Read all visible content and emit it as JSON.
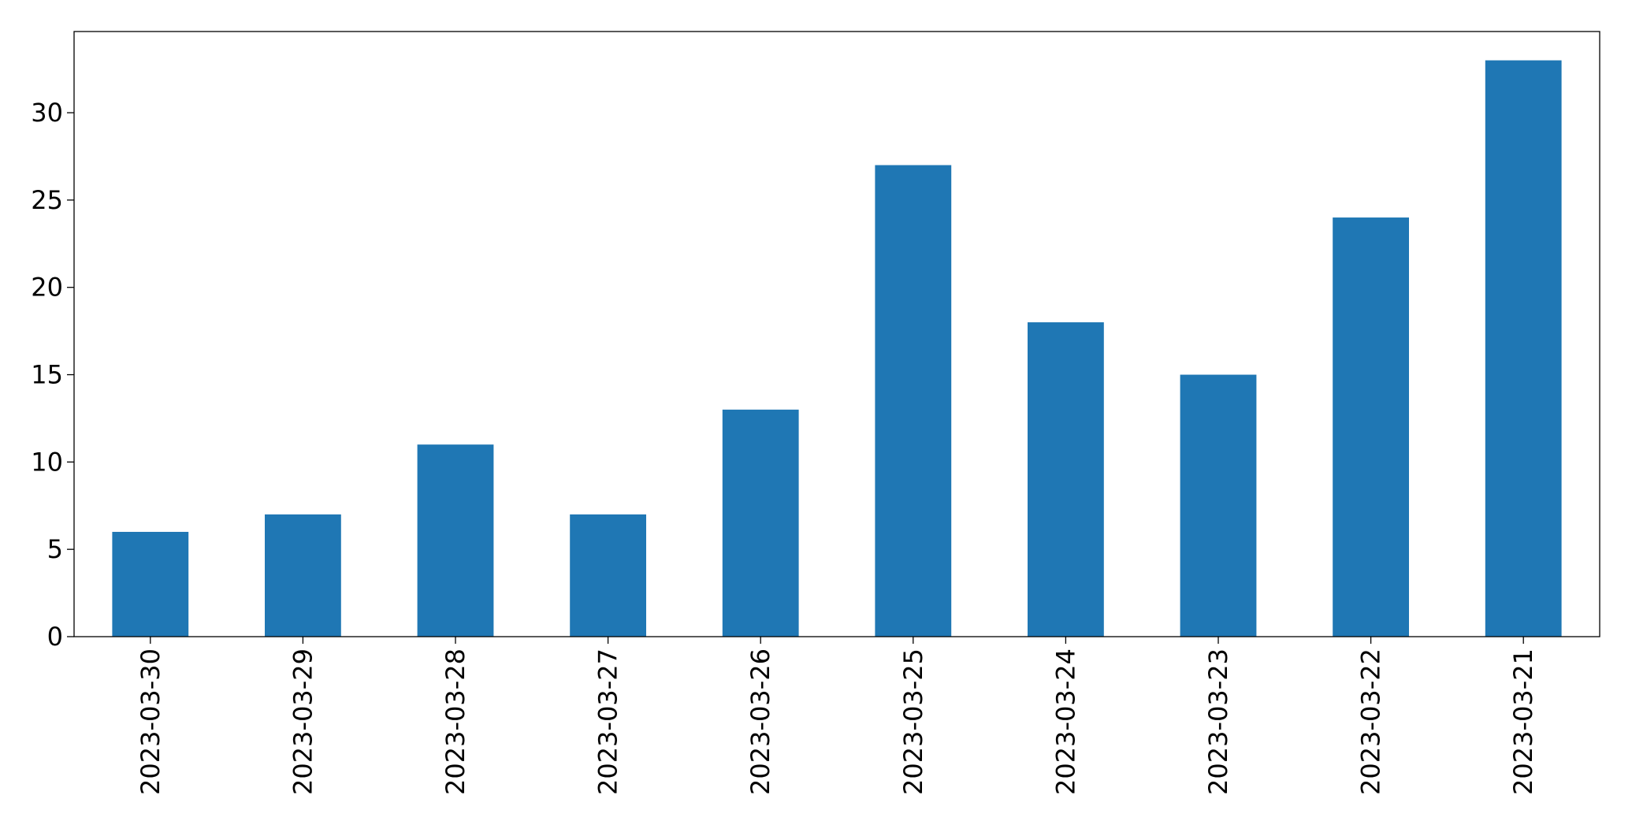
{
  "chart_data": {
    "type": "bar",
    "categories": [
      "2023-03-30",
      "2023-03-29",
      "2023-03-28",
      "2023-03-27",
      "2023-03-26",
      "2023-03-25",
      "2023-03-24",
      "2023-03-23",
      "2023-03-22",
      "2023-03-21"
    ],
    "values": [
      6,
      7,
      11,
      7,
      13,
      27,
      18,
      15,
      24,
      33
    ],
    "color": "#1f77b4",
    "ylim": [
      0,
      34.65
    ],
    "yticks": [
      0,
      5,
      10,
      15,
      20,
      25,
      30
    ],
    "grid": false
  }
}
